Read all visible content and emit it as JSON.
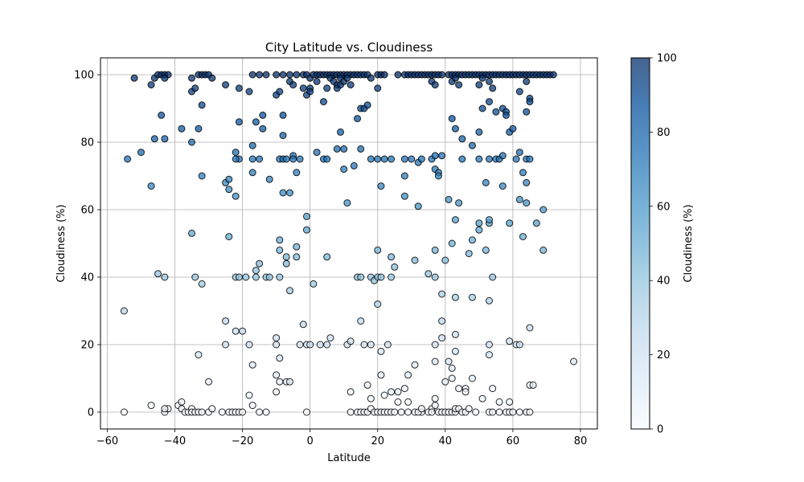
{
  "chart_data": {
    "type": "scatter",
    "title": "City Latitude vs. Cloudiness",
    "xlabel": "Latitude",
    "ylabel": "Cloudiness (%)",
    "xlim": [
      -62,
      85
    ],
    "ylim": [
      -5,
      105
    ],
    "x_ticks": [
      -60,
      -40,
      -20,
      0,
      20,
      40,
      60,
      80
    ],
    "y_ticks": [
      0,
      20,
      40,
      60,
      80,
      100
    ],
    "grid": true,
    "colormap": "Blues",
    "colorbar": {
      "label": "Cloudiness (%)",
      "range": [
        0,
        100
      ],
      "ticks": [
        0,
        20,
        40,
        60,
        80,
        100
      ],
      "color_stops": [
        "#f7fbff",
        "#deebf7",
        "#c6dbef",
        "#9ecae1",
        "#6baed6",
        "#4292c6",
        "#2171b5",
        "#08519c",
        "#08306b"
      ]
    },
    "marker": {
      "alpha": 0.75,
      "edge_color": "#000000"
    },
    "points": [
      [
        -52,
        99
      ],
      [
        -54,
        75
      ],
      [
        -50,
        77
      ],
      [
        -47,
        97
      ],
      [
        -46,
        99
      ],
      [
        -46,
        81
      ],
      [
        -47,
        67
      ],
      [
        -45,
        100
      ],
      [
        -44,
        100
      ],
      [
        -43,
        100
      ],
      [
        -42,
        100
      ],
      [
        -43,
        99
      ],
      [
        -43,
        81
      ],
      [
        -44,
        88
      ],
      [
        -38,
        84
      ],
      [
        -35,
        99
      ],
      [
        -35,
        95
      ],
      [
        -34,
        96
      ],
      [
        -33,
        100
      ],
      [
        -32,
        100
      ],
      [
        -31,
        100
      ],
      [
        -30,
        100
      ],
      [
        -29,
        99
      ],
      [
        -33,
        84
      ],
      [
        -35,
        80
      ],
      [
        -32,
        91
      ],
      [
        -32,
        70
      ],
      [
        -35,
        53
      ],
      [
        -25,
        97
      ],
      [
        -21,
        96
      ],
      [
        -18,
        95
      ],
      [
        -17,
        100
      ],
      [
        -15,
        100
      ],
      [
        -13,
        100
      ],
      [
        -10,
        100
      ],
      [
        -8,
        100
      ],
      [
        -6,
        100
      ],
      [
        -4,
        100
      ],
      [
        -2,
        100
      ],
      [
        -1,
        100
      ],
      [
        -17,
        79
      ],
      [
        -16,
        86
      ],
      [
        -21,
        86
      ],
      [
        -22,
        77
      ],
      [
        -21,
        75
      ],
      [
        -17,
        75
      ],
      [
        -15,
        75
      ],
      [
        -14,
        84
      ],
      [
        -14,
        88
      ],
      [
        -12,
        69
      ],
      [
        -10,
        94
      ],
      [
        -9,
        75
      ],
      [
        -8,
        75
      ],
      [
        -8,
        88
      ],
      [
        -8,
        82
      ],
      [
        -6,
        98
      ],
      [
        -5,
        76
      ],
      [
        -5,
        75
      ],
      [
        -3,
        75
      ],
      [
        -7,
        75
      ],
      [
        -5,
        97
      ],
      [
        -2,
        96
      ],
      [
        -1,
        94
      ],
      [
        -9,
        95
      ],
      [
        -4,
        71
      ],
      [
        -17,
        71
      ],
      [
        -22,
        75
      ],
      [
        -25,
        68
      ],
      [
        -24,
        66
      ],
      [
        -22,
        64
      ],
      [
        -24,
        69
      ],
      [
        -8,
        65
      ],
      [
        -6,
        65
      ],
      [
        -24,
        52
      ],
      [
        -22,
        40
      ],
      [
        -21,
        40
      ],
      [
        -19,
        40
      ],
      [
        -16,
        40
      ],
      [
        -15,
        44
      ],
      [
        -16,
        42
      ],
      [
        -13,
        40
      ],
      [
        -12,
        40
      ],
      [
        -9,
        51
      ],
      [
        -9,
        48
      ],
      [
        -9,
        40
      ],
      [
        -7,
        46
      ],
      [
        -7,
        44
      ],
      [
        -6,
        36
      ],
      [
        -4,
        49
      ],
      [
        -4,
        46
      ],
      [
        -1,
        58
      ],
      [
        -1,
        54
      ],
      [
        -45,
        41
      ],
      [
        -43,
        40
      ],
      [
        -34,
        40
      ],
      [
        -32,
        38
      ],
      [
        -25,
        27
      ],
      [
        -25,
        20
      ],
      [
        -22,
        24
      ],
      [
        -20,
        24
      ],
      [
        -18,
        20
      ],
      [
        -17,
        14
      ],
      [
        -10,
        22
      ],
      [
        -10,
        20
      ],
      [
        -9,
        16
      ],
      [
        -10,
        11
      ],
      [
        -9,
        9
      ],
      [
        -7,
        9
      ],
      [
        -6,
        9
      ],
      [
        -10,
        6
      ],
      [
        -3,
        20
      ],
      [
        -2,
        26
      ],
      [
        -1,
        20
      ],
      [
        -33,
        17
      ],
      [
        -30,
        9
      ],
      [
        -18,
        5
      ],
      [
        -17,
        2
      ],
      [
        -55,
        30
      ],
      [
        -55,
        0
      ],
      [
        -47,
        2
      ],
      [
        -43,
        0
      ],
      [
        -42,
        1
      ],
      [
        -43,
        1
      ],
      [
        -39,
        2
      ],
      [
        -38,
        3
      ],
      [
        -38,
        1
      ],
      [
        -37,
        0
      ],
      [
        -36,
        0
      ],
      [
        -35,
        1
      ],
      [
        -35,
        0
      ],
      [
        -34,
        0
      ],
      [
        -33,
        0
      ],
      [
        -32,
        0
      ],
      [
        -30,
        0
      ],
      [
        -29,
        1
      ],
      [
        -26,
        0
      ],
      [
        -24,
        0
      ],
      [
        -23,
        0
      ],
      [
        -22,
        0
      ],
      [
        -21,
        0
      ],
      [
        -20,
        0
      ],
      [
        -15,
        0
      ],
      [
        -13,
        0
      ],
      [
        -1,
        0
      ],
      [
        0,
        96
      ],
      [
        0,
        95
      ],
      [
        0,
        99
      ],
      [
        1,
        100
      ],
      [
        2,
        100
      ],
      [
        3,
        100
      ],
      [
        4,
        100
      ],
      [
        5,
        100
      ],
      [
        6,
        100
      ],
      [
        7,
        100
      ],
      [
        8,
        100
      ],
      [
        9,
        100
      ],
      [
        10,
        100
      ],
      [
        11,
        100
      ],
      [
        12,
        100
      ],
      [
        13,
        100
      ],
      [
        14,
        100
      ],
      [
        15,
        100
      ],
      [
        16,
        100
      ],
      [
        17,
        100
      ],
      [
        18,
        99
      ],
      [
        20,
        100
      ],
      [
        21,
        100
      ],
      [
        22,
        100
      ],
      [
        26,
        100
      ],
      [
        28,
        100
      ],
      [
        29,
        100
      ],
      [
        30,
        100
      ],
      [
        31,
        100
      ],
      [
        32,
        100
      ],
      [
        33,
        100
      ],
      [
        34,
        100
      ],
      [
        35,
        100
      ],
      [
        36,
        100
      ],
      [
        37,
        100
      ],
      [
        38,
        100
      ],
      [
        39,
        100
      ],
      [
        41,
        100
      ],
      [
        42,
        100
      ],
      [
        43,
        100
      ],
      [
        44,
        100
      ],
      [
        45,
        100
      ],
      [
        46,
        100
      ],
      [
        47,
        100
      ],
      [
        48,
        100
      ],
      [
        49,
        100
      ],
      [
        50,
        100
      ],
      [
        51,
        100
      ],
      [
        52,
        100
      ],
      [
        53,
        100
      ],
      [
        54,
        100
      ],
      [
        55,
        100
      ],
      [
        56,
        100
      ],
      [
        57,
        100
      ],
      [
        58,
        100
      ],
      [
        59,
        100
      ],
      [
        60,
        100
      ],
      [
        61,
        100
      ],
      [
        62,
        100
      ],
      [
        63,
        100
      ],
      [
        64,
        100
      ],
      [
        65,
        100
      ],
      [
        66,
        100
      ],
      [
        67,
        100
      ],
      [
        68,
        100
      ],
      [
        69,
        100
      ],
      [
        70,
        100
      ],
      [
        71,
        100
      ],
      [
        72,
        100
      ],
      [
        2,
        98
      ],
      [
        4,
        92
      ],
      [
        5,
        96
      ],
      [
        6,
        99
      ],
      [
        7,
        98
      ],
      [
        8,
        97
      ],
      [
        8,
        96
      ],
      [
        9,
        97
      ],
      [
        9,
        99
      ],
      [
        10,
        98
      ],
      [
        11,
        99
      ],
      [
        12,
        97
      ],
      [
        20,
        96
      ],
      [
        36,
        98
      ],
      [
        37,
        97
      ],
      [
        42,
        98
      ],
      [
        43,
        99
      ],
      [
        44,
        97
      ],
      [
        50,
        97
      ],
      [
        51,
        99
      ],
      [
        53,
        98
      ],
      [
        54,
        96
      ],
      [
        55,
        89
      ],
      [
        57,
        90
      ],
      [
        58,
        89
      ],
      [
        58,
        88
      ],
      [
        59,
        83
      ],
      [
        60,
        84
      ],
      [
        64,
        98
      ],
      [
        64,
        89
      ],
      [
        65,
        93
      ],
      [
        65,
        92
      ],
      [
        42,
        87
      ],
      [
        43,
        84
      ],
      [
        45,
        81
      ],
      [
        50,
        83
      ],
      [
        51,
        90
      ],
      [
        53,
        92
      ],
      [
        62,
        95
      ],
      [
        62,
        77
      ],
      [
        63,
        71
      ],
      [
        64,
        68
      ],
      [
        2,
        77
      ],
      [
        4,
        75
      ],
      [
        5,
        75
      ],
      [
        8,
        78
      ],
      [
        9,
        83
      ],
      [
        10,
        78
      ],
      [
        10,
        72
      ],
      [
        13,
        73
      ],
      [
        14,
        87
      ],
      [
        15,
        90
      ],
      [
        16,
        90
      ],
      [
        17,
        91
      ],
      [
        15,
        78
      ],
      [
        18,
        75
      ],
      [
        20,
        75
      ],
      [
        22,
        75
      ],
      [
        24,
        75
      ],
      [
        28,
        70
      ],
      [
        28,
        75
      ],
      [
        30,
        75
      ],
      [
        32,
        74
      ],
      [
        33,
        75
      ],
      [
        36,
        75
      ],
      [
        37,
        72
      ],
      [
        38,
        71
      ],
      [
        38,
        70
      ],
      [
        39,
        76
      ],
      [
        37,
        76
      ],
      [
        45,
        75
      ],
      [
        48,
        79
      ],
      [
        50,
        75
      ],
      [
        52,
        68
      ],
      [
        53,
        75
      ],
      [
        55,
        75
      ],
      [
        56,
        75
      ],
      [
        57,
        76
      ],
      [
        57,
        67
      ],
      [
        61,
        75
      ],
      [
        64,
        75
      ],
      [
        65,
        75
      ],
      [
        21,
        67
      ],
      [
        28,
        64
      ],
      [
        32,
        61
      ],
      [
        11,
        62
      ],
      [
        41,
        63
      ],
      [
        42,
        50
      ],
      [
        43,
        57
      ],
      [
        44,
        62
      ],
      [
        47,
        47
      ],
      [
        48,
        51
      ],
      [
        50,
        54
      ],
      [
        50,
        56
      ],
      [
        52,
        48
      ],
      [
        53,
        56
      ],
      [
        53,
        57
      ],
      [
        54,
        40
      ],
      [
        59,
        56
      ],
      [
        62,
        63
      ],
      [
        63,
        52
      ],
      [
        64,
        62
      ],
      [
        67,
        56
      ],
      [
        69,
        60
      ],
      [
        69,
        48
      ],
      [
        1,
        38
      ],
      [
        5,
        46
      ],
      [
        14,
        40
      ],
      [
        15,
        40
      ],
      [
        18,
        40
      ],
      [
        19,
        39
      ],
      [
        20,
        40
      ],
      [
        20,
        48
      ],
      [
        21,
        40
      ],
      [
        24,
        40
      ],
      [
        24,
        46
      ],
      [
        25,
        43
      ],
      [
        31,
        45
      ],
      [
        35,
        41
      ],
      [
        37,
        40
      ],
      [
        37,
        48
      ],
      [
        40,
        45
      ],
      [
        48,
        34
      ],
      [
        43,
        34
      ],
      [
        39,
        35
      ],
      [
        53,
        33
      ],
      [
        0,
        20
      ],
      [
        3,
        20
      ],
      [
        5,
        20
      ],
      [
        6,
        22
      ],
      [
        11,
        20
      ],
      [
        12,
        21
      ],
      [
        15,
        27
      ],
      [
        16,
        20
      ],
      [
        18,
        20
      ],
      [
        20,
        32
      ],
      [
        21,
        18
      ],
      [
        23,
        20
      ],
      [
        29,
        11
      ],
      [
        31,
        14
      ],
      [
        37,
        20
      ],
      [
        37,
        15
      ],
      [
        39,
        27
      ],
      [
        39,
        22
      ],
      [
        40,
        9
      ],
      [
        41,
        15
      ],
      [
        42,
        13
      ],
      [
        42,
        10
      ],
      [
        43,
        23
      ],
      [
        43,
        18
      ],
      [
        44,
        7
      ],
      [
        46,
        7
      ],
      [
        46,
        6
      ],
      [
        48,
        10
      ],
      [
        53,
        20
      ],
      [
        53,
        17
      ],
      [
        54,
        7
      ],
      [
        56,
        3
      ],
      [
        59,
        21
      ],
      [
        59,
        3
      ],
      [
        61,
        20
      ],
      [
        62,
        20
      ],
      [
        65,
        25
      ],
      [
        65,
        8
      ],
      [
        66,
        8
      ],
      [
        78,
        15
      ],
      [
        12,
        6
      ],
      [
        17,
        8
      ],
      [
        18,
        4
      ],
      [
        21,
        11
      ],
      [
        22,
        5
      ],
      [
        24,
        6
      ],
      [
        26,
        6
      ],
      [
        26,
        3
      ],
      [
        28,
        7
      ],
      [
        29,
        3
      ],
      [
        33,
        0
      ],
      [
        36,
        1
      ],
      [
        37,
        4
      ],
      [
        37,
        2
      ],
      [
        12,
        0
      ],
      [
        14,
        0
      ],
      [
        15,
        0
      ],
      [
        16,
        0
      ],
      [
        17,
        0
      ],
      [
        18,
        1
      ],
      [
        19,
        0
      ],
      [
        20,
        0
      ],
      [
        21,
        0
      ],
      [
        22,
        0
      ],
      [
        23,
        0
      ],
      [
        24,
        0
      ],
      [
        25,
        0
      ],
      [
        27,
        0
      ],
      [
        29,
        0
      ],
      [
        31,
        0
      ],
      [
        32,
        0
      ],
      [
        33,
        1
      ],
      [
        35,
        0
      ],
      [
        36,
        0
      ],
      [
        38,
        0
      ],
      [
        39,
        0
      ],
      [
        40,
        0
      ],
      [
        41,
        0
      ],
      [
        42,
        0
      ],
      [
        43,
        0
      ],
      [
        43,
        1
      ],
      [
        44,
        1
      ],
      [
        45,
        0
      ],
      [
        46,
        0
      ],
      [
        47,
        1
      ],
      [
        49,
        0
      ],
      [
        51,
        4
      ],
      [
        53,
        0
      ],
      [
        54,
        0
      ],
      [
        56,
        0
      ],
      [
        58,
        0
      ],
      [
        59,
        0
      ],
      [
        60,
        0
      ],
      [
        62,
        0
      ],
      [
        64,
        0
      ],
      [
        65,
        0
      ]
    ]
  }
}
